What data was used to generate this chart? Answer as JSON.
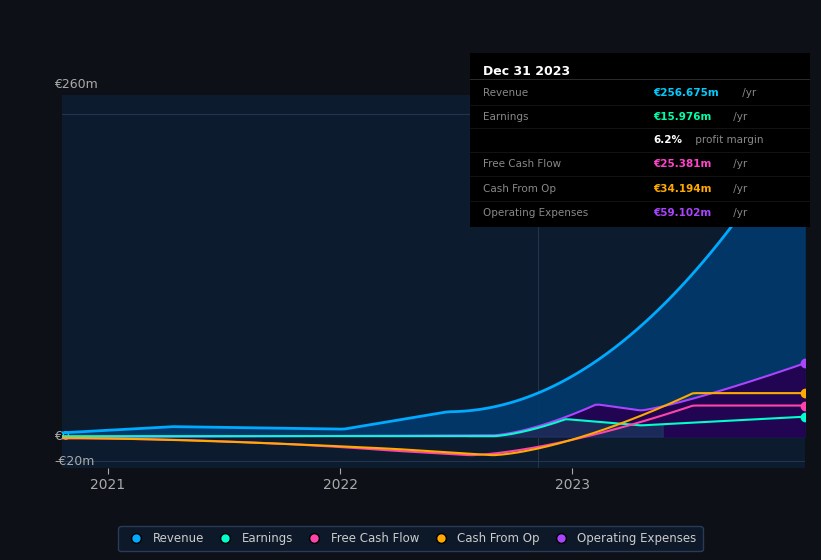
{
  "bg_color": "#0d1117",
  "plot_bg_color": "#0d1b2e",
  "ylim": [
    -25,
    275
  ],
  "grid_lines": [
    260,
    0,
    -20
  ],
  "xtick_labels": [
    "2021",
    "2022",
    "2023"
  ],
  "ylabel_top": "€260m",
  "ylabel_zero": "€0",
  "ylabel_neg": "-€20m",
  "info_box": {
    "title": "Dec 31 2023",
    "rows": [
      {
        "label": "Revenue",
        "value": "€256.675m",
        "unit": " /yr",
        "val_color": "#00ccff",
        "label_color": "#888888"
      },
      {
        "label": "Earnings",
        "value": "€15.976m",
        "unit": " /yr",
        "val_color": "#00ffaa",
        "label_color": "#888888"
      },
      {
        "label": "",
        "value": "6.2%",
        "unit": " profit margin",
        "val_color": "#ffffff",
        "label_color": "#888888"
      },
      {
        "label": "Free Cash Flow",
        "value": "€25.381m",
        "unit": " /yr",
        "val_color": "#ff44cc",
        "label_color": "#888888"
      },
      {
        "label": "Cash From Op",
        "value": "€34.194m",
        "unit": " /yr",
        "val_color": "#ffaa00",
        "label_color": "#888888"
      },
      {
        "label": "Operating Expenses",
        "value": "€59.102m",
        "unit": " /yr",
        "val_color": "#aa44ff",
        "label_color": "#888888"
      }
    ]
  },
  "revenue_color": "#00aaff",
  "revenue_fill": "#003a6e",
  "earnings_color": "#00ffcc",
  "fcf_color": "#ff44aa",
  "cashop_color": "#ffaa00",
  "opex_color": "#aa44ff",
  "opex_fill": "#250050",
  "cashop_fill_color": "#1a3a5c",
  "legend": [
    {
      "label": "Revenue",
      "color": "#00aaff"
    },
    {
      "label": "Earnings",
      "color": "#00ffcc"
    },
    {
      "label": "Free Cash Flow",
      "color": "#ff44aa"
    },
    {
      "label": "Cash From Op",
      "color": "#ffaa00"
    },
    {
      "label": "Operating Expenses",
      "color": "#aa44ff"
    }
  ]
}
